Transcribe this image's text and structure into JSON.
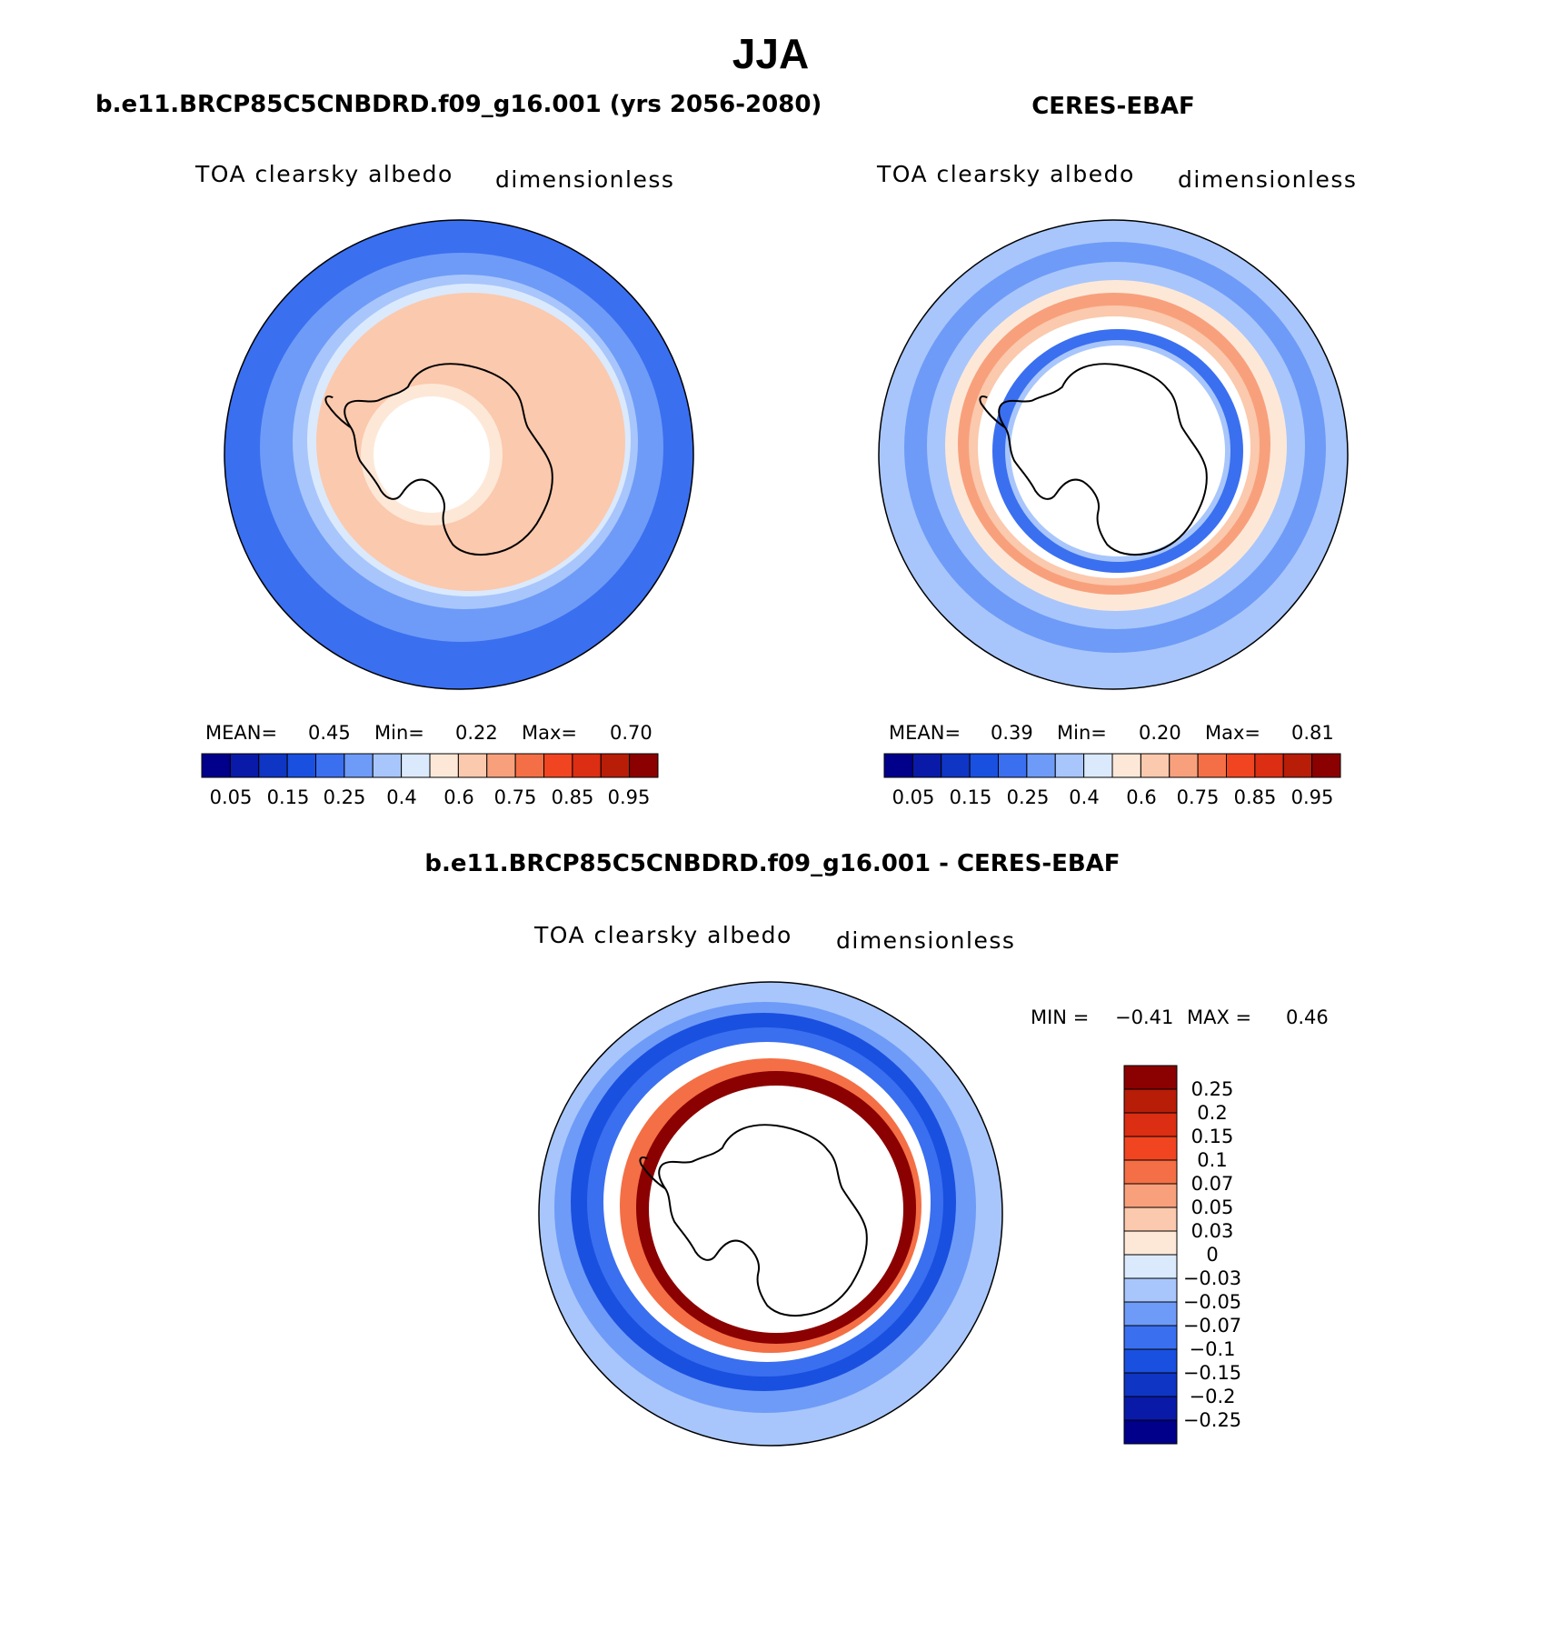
{
  "figure": {
    "season": "JJA",
    "colors": {
      "scale": [
        "#00008b",
        "#0a1aa8",
        "#0f35c4",
        "#1a50e0",
        "#3a6ff0",
        "#6e9bf7",
        "#a8c6fb",
        "#dbe9fd",
        "#fde8d8",
        "#fbc9ad",
        "#f8a07c",
        "#f46f45",
        "#f04520",
        "#dc2e12",
        "#b81d08",
        "#8b0000"
      ],
      "diff": [
        "#00008b",
        "#0a1aa8",
        "#0f35c4",
        "#1a50e0",
        "#3a6ff0",
        "#6e9bf7",
        "#a8c6fb",
        "#dbe9fd",
        "#fde8d8",
        "#fbc9ad",
        "#f8a07c",
        "#f46f45",
        "#f04520",
        "#dc2e12",
        "#b81d08",
        "#8b0000"
      ],
      "coast": "#000000"
    },
    "panels": [
      {
        "id": "model",
        "title": "b.e11.BRCP85C5CNBDRD.f09_g16.001 (yrs 2056-2080)",
        "variable": "TOA clearsky albedo",
        "units": "dimensionless",
        "stats": {
          "mean_label": "MEAN=",
          "mean": "0.45",
          "min_label": "Min=",
          "min": "0.22",
          "max_label": "Max=",
          "max": "0.70"
        },
        "colorbar_labels": [
          "0.05",
          "0.15",
          "0.25",
          "0.4",
          "0.6",
          "0.75",
          "0.85",
          "0.95"
        ]
      },
      {
        "id": "obs",
        "title": "CERES-EBAF",
        "variable": "TOA clearsky albedo",
        "units": "dimensionless",
        "stats": {
          "mean_label": "MEAN=",
          "mean": "0.39",
          "min_label": "Min=",
          "min": "0.20",
          "max_label": "Max=",
          "max": "0.81"
        },
        "colorbar_labels": [
          "0.05",
          "0.15",
          "0.25",
          "0.4",
          "0.6",
          "0.75",
          "0.85",
          "0.95"
        ]
      },
      {
        "id": "diff",
        "title": "b.e11.BRCP85C5CNBDRD.f09_g16.001 - CERES-EBAF",
        "variable": "TOA clearsky albedo",
        "units": "dimensionless",
        "stats": {
          "min_label": "MIN =",
          "min": "−0.41",
          "max_label": "MAX =",
          "max": "0.46"
        },
        "colorbar_labels": [
          "0.25",
          "0.2",
          "0.15",
          "0.1",
          "0.07",
          "0.05",
          "0.03",
          "0",
          "−0.03",
          "−0.05",
          "−0.07",
          "−0.1",
          "−0.15",
          "−0.2",
          "−0.25"
        ]
      }
    ]
  }
}
